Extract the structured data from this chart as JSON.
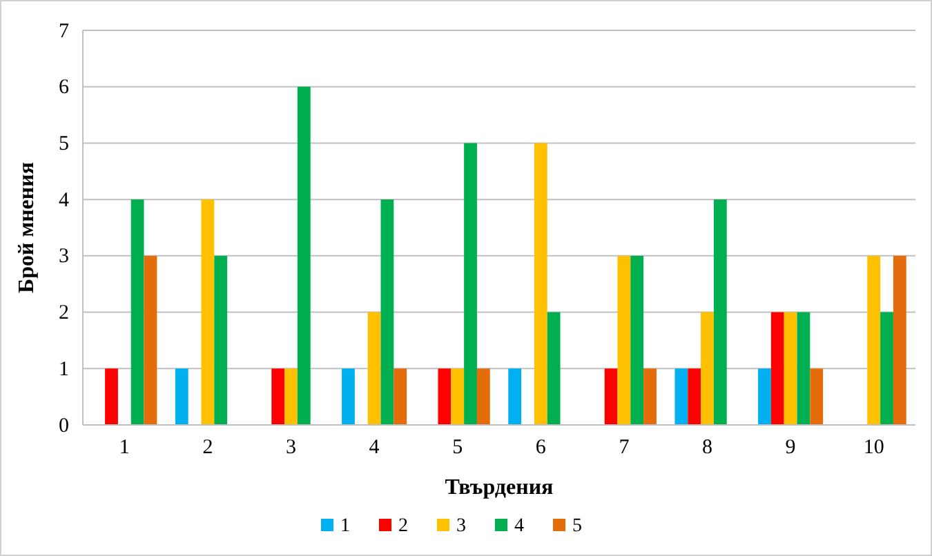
{
  "chart_data": {
    "type": "bar",
    "xlabel": "Твърдения",
    "ylabel": "Брой мнения",
    "categories": [
      "1",
      "2",
      "3",
      "4",
      "5",
      "6",
      "7",
      "8",
      "9",
      "10"
    ],
    "series": [
      {
        "name": "1",
        "color": "#00b0f0",
        "values": [
          0,
          1,
          0,
          1,
          0,
          1,
          0,
          1,
          1,
          0
        ]
      },
      {
        "name": "2",
        "color": "#ff0000",
        "values": [
          1,
          0,
          1,
          0,
          1,
          0,
          1,
          1,
          2,
          0
        ]
      },
      {
        "name": "3",
        "color": "#ffc000",
        "values": [
          0,
          4,
          1,
          2,
          1,
          5,
          3,
          2,
          2,
          3
        ]
      },
      {
        "name": "4",
        "color": "#00b050",
        "values": [
          4,
          3,
          6,
          4,
          5,
          2,
          3,
          4,
          2,
          2
        ]
      },
      {
        "name": "5",
        "color": "#e46c0a",
        "values": [
          3,
          0,
          0,
          1,
          1,
          0,
          1,
          0,
          1,
          3
        ]
      }
    ],
    "ylim": [
      0,
      7
    ],
    "yticks": [
      0,
      1,
      2,
      3,
      4,
      5,
      6,
      7
    ],
    "grid": "y",
    "legend": "bottom"
  }
}
